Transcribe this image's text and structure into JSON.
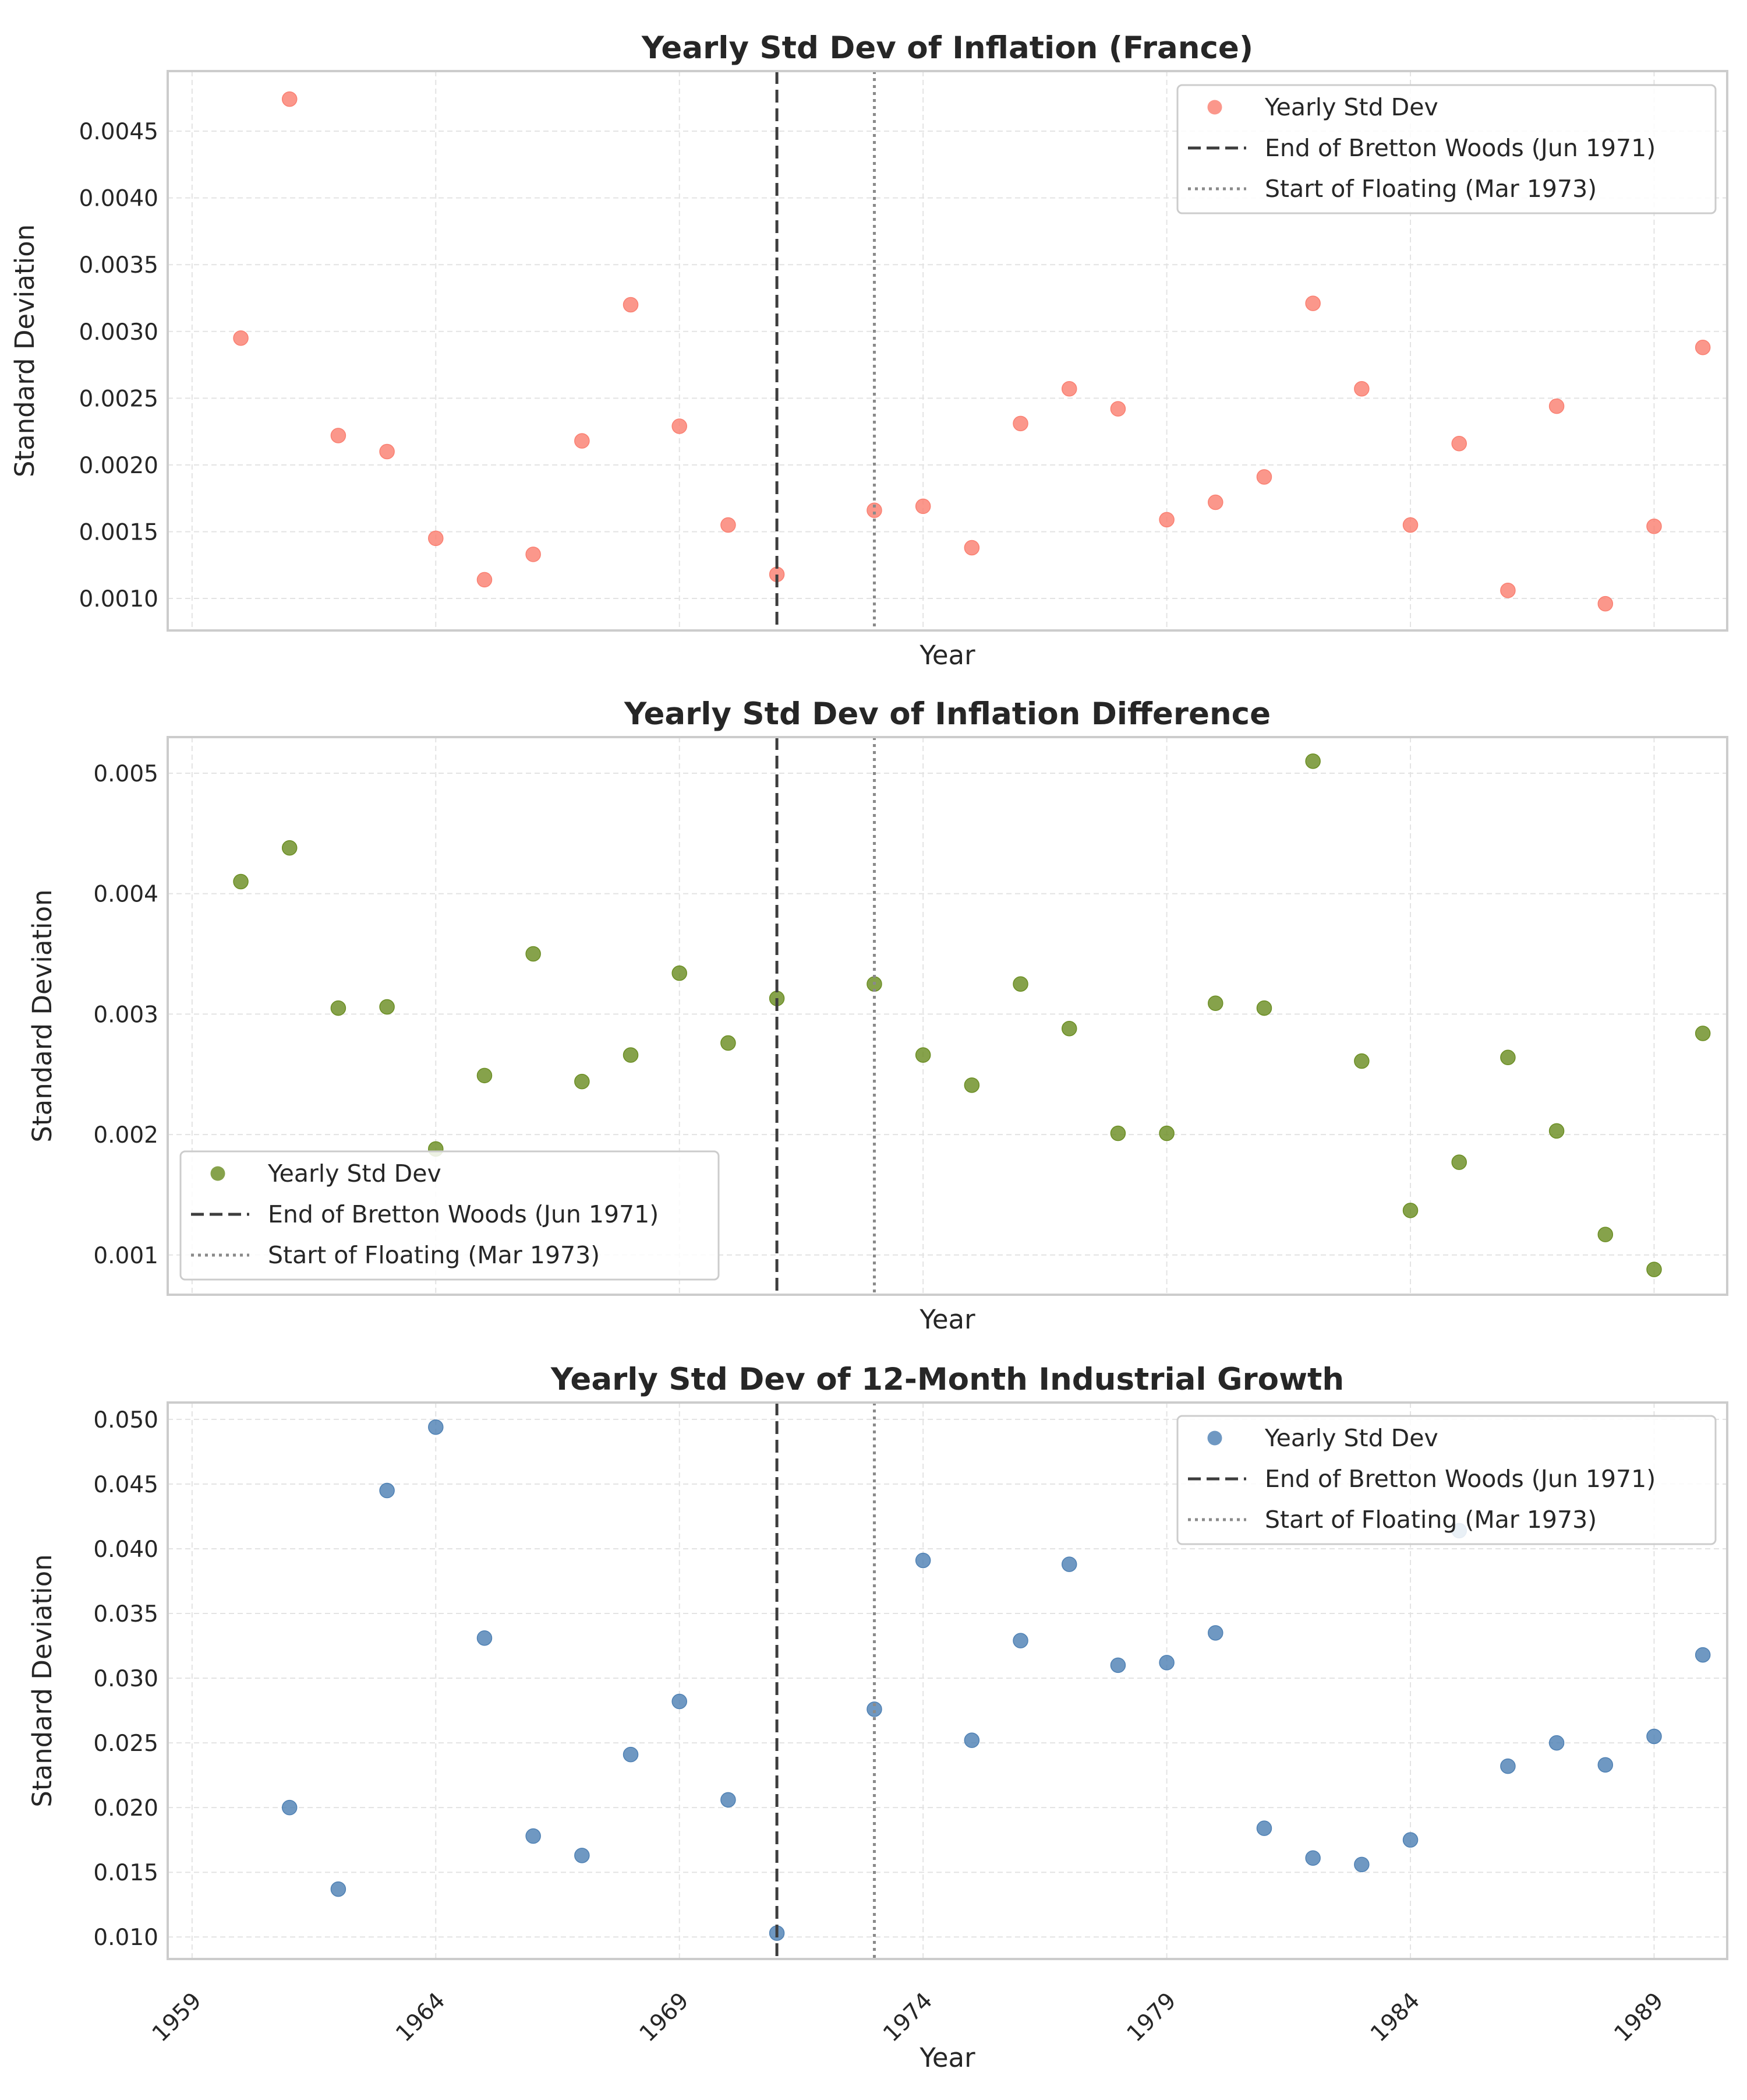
{
  "chart_data": [
    {
      "type": "scatter",
      "title": "Yearly Std Dev of Inflation (France)",
      "xlabel": "Year",
      "ylabel": "Standard Deviation",
      "legend_position": "upper-right",
      "grid": true,
      "xlim": [
        1959.5,
        1991.5
      ],
      "ylim": [
        0.00076,
        0.00495
      ],
      "yticks": [
        0.001,
        0.0015,
        0.002,
        0.0025,
        0.003,
        0.0035,
        0.004,
        0.0045
      ],
      "ytick_labels": [
        "0.0010",
        "0.0015",
        "0.0020",
        "0.0025",
        "0.0030",
        "0.0035",
        "0.0040",
        "0.0045"
      ],
      "xticks": [
        1960,
        1965,
        1970,
        1975,
        1980,
        1985,
        1990
      ],
      "xtick_labels": [
        "1959",
        "1964",
        "1969",
        "1974",
        "1979",
        "1984",
        "1989"
      ],
      "show_xtick_labels": false,
      "color": "#fa8072",
      "series": [
        {
          "name": "Yearly Std Dev",
          "x": [
            1961,
            1962,
            1963,
            1964,
            1965,
            1966,
            1967,
            1968,
            1969,
            1970,
            1971,
            1972,
            1974,
            1975,
            1976,
            1977,
            1978,
            1979,
            1980,
            1981,
            1982,
            1983,
            1984,
            1985,
            1986,
            1987,
            1988,
            1989,
            1990,
            1991
          ],
          "y": [
            0.00295,
            0.00474,
            0.00222,
            0.0021,
            0.00145,
            0.00114,
            0.00133,
            0.00218,
            0.0032,
            0.00229,
            0.00155,
            0.00118,
            0.00166,
            0.00169,
            0.00138,
            0.00231,
            0.00257,
            0.00242,
            0.00159,
            0.00172,
            0.00191,
            0.00321,
            0.00257,
            0.00155,
            0.00216,
            0.00106,
            0.00244,
            0.00096,
            0.00154,
            0.00288
          ]
        }
      ],
      "vlines": [
        {
          "name": "End of Bretton Woods (Jun 1971)",
          "x": 1972,
          "style": "dashed",
          "color": "#3d3d3d"
        },
        {
          "name": "Start of Floating (Mar 1973)",
          "x": 1974,
          "style": "dotted",
          "color": "#8a8a8a"
        }
      ]
    },
    {
      "type": "scatter",
      "title": "Yearly Std Dev of Inflation Difference",
      "xlabel": "Year",
      "ylabel": "Standard Deviation",
      "legend_position": "lower-left",
      "grid": true,
      "xlim": [
        1959.5,
        1991.5
      ],
      "ylim": [
        0.00067,
        0.0053
      ],
      "yticks": [
        0.001,
        0.002,
        0.003,
        0.004,
        0.005
      ],
      "ytick_labels": [
        "0.001",
        "0.002",
        "0.003",
        "0.004",
        "0.005"
      ],
      "xticks": [
        1960,
        1965,
        1970,
        1975,
        1980,
        1985,
        1990
      ],
      "xtick_labels": [
        "1959",
        "1964",
        "1969",
        "1974",
        "1979",
        "1984",
        "1989"
      ],
      "show_xtick_labels": false,
      "color": "#6b8e23",
      "series": [
        {
          "name": "Yearly Std Dev",
          "x": [
            1961,
            1962,
            1963,
            1964,
            1965,
            1966,
            1967,
            1968,
            1969,
            1970,
            1971,
            1972,
            1974,
            1975,
            1976,
            1977,
            1978,
            1979,
            1980,
            1981,
            1982,
            1983,
            1984,
            1985,
            1986,
            1987,
            1988,
            1989,
            1990,
            1991
          ],
          "y": [
            0.0041,
            0.00438,
            0.00305,
            0.00306,
            0.00188,
            0.00249,
            0.0035,
            0.00244,
            0.00266,
            0.00334,
            0.00276,
            0.00313,
            0.00325,
            0.00266,
            0.00241,
            0.00325,
            0.00288,
            0.00201,
            0.00201,
            0.00309,
            0.00305,
            0.0051,
            0.00261,
            0.00137,
            0.00177,
            0.00264,
            0.00203,
            0.00117,
            0.00088,
            0.00284
          ]
        }
      ],
      "vlines": [
        {
          "name": "End of Bretton Woods (Jun 1971)",
          "x": 1972,
          "style": "dashed",
          "color": "#3d3d3d"
        },
        {
          "name": "Start of Floating (Mar 1973)",
          "x": 1974,
          "style": "dotted",
          "color": "#8a8a8a"
        }
      ]
    },
    {
      "type": "scatter",
      "title": "Yearly Std Dev of 12-Month Industrial Growth",
      "xlabel": "Year",
      "ylabel": "Standard Deviation",
      "legend_position": "upper-right",
      "grid": true,
      "xlim": [
        1959.5,
        1991.5
      ],
      "ylim": [
        0.0083,
        0.0513
      ],
      "yticks": [
        0.01,
        0.015,
        0.02,
        0.025,
        0.03,
        0.035,
        0.04,
        0.045,
        0.05
      ],
      "ytick_labels": [
        "0.010",
        "0.015",
        "0.020",
        "0.025",
        "0.030",
        "0.035",
        "0.040",
        "0.045",
        "0.050"
      ],
      "xticks": [
        1960,
        1965,
        1970,
        1975,
        1980,
        1985,
        1990
      ],
      "xtick_labels": [
        "1959",
        "1964",
        "1969",
        "1974",
        "1979",
        "1984",
        "1989"
      ],
      "show_xtick_labels": true,
      "color": "#4f81b4",
      "series": [
        {
          "name": "Yearly Std Dev",
          "x": [
            1962,
            1963,
            1964,
            1965,
            1966,
            1967,
            1968,
            1969,
            1970,
            1971,
            1972,
            1974,
            1975,
            1976,
            1977,
            1978,
            1979,
            1980,
            1981,
            1982,
            1983,
            1984,
            1985,
            1986,
            1987,
            1988,
            1989,
            1990,
            1991
          ],
          "y": [
            0.02,
            0.0137,
            0.0445,
            0.0494,
            0.0331,
            0.0178,
            0.0163,
            0.0241,
            0.0282,
            0.0206,
            0.0103,
            0.0276,
            0.0391,
            0.0252,
            0.0329,
            0.0388,
            0.031,
            0.0312,
            0.0335,
            0.0184,
            0.0161,
            0.0156,
            0.0175,
            0.0414,
            0.0232,
            0.025,
            0.0233,
            0.0255,
            0.0318
          ]
        }
      ],
      "vlines": [
        {
          "name": "End of Bretton Woods (Jun 1971)",
          "x": 1972,
          "style": "dashed",
          "color": "#3d3d3d"
        },
        {
          "name": "Start of Floating (Mar 1973)",
          "x": 1974,
          "style": "dotted",
          "color": "#8a8a8a"
        }
      ]
    }
  ]
}
